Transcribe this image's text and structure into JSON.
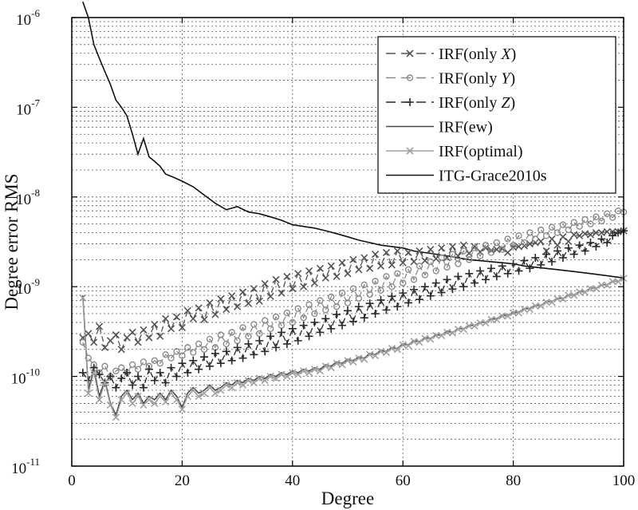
{
  "chart_data": {
    "type": "line",
    "title": "",
    "xlabel": "Degree",
    "ylabel": "Degree error RMS",
    "xlim": [
      0,
      100
    ],
    "ylim": [
      1e-11,
      1e-06
    ],
    "yscale": "log",
    "x_ticks": [
      0,
      20,
      40,
      60,
      80,
      100
    ],
    "x_tick_labels": [
      "0",
      "20",
      "40",
      "60",
      "80",
      "100"
    ],
    "y_ticks": [
      1e-11,
      1e-10,
      1e-09,
      1e-08,
      1e-07,
      1e-06
    ],
    "y_tick_labels": [
      {
        "base": "10",
        "exp": "-11"
      },
      {
        "base": "10",
        "exp": "-10"
      },
      {
        "base": "10",
        "exp": "-9"
      },
      {
        "base": "10",
        "exp": "-8"
      },
      {
        "base": "10",
        "exp": "-7"
      },
      {
        "base": "10",
        "exp": "-6"
      }
    ],
    "grid": true,
    "legend_position": "top-right",
    "series": [
      {
        "name": "IRF(only X)",
        "legend_prefix": "IRF(only ",
        "legend_var": "X",
        "legend_suffix": ")",
        "color": "#555555",
        "marker": "x",
        "dashed": true,
        "x_start": 2,
        "x_step": 1,
        "values": [
          2.7e-10,
          3e-10,
          2.4e-10,
          3.6e-10,
          2.1e-10,
          2.5e-10,
          2.9e-10,
          2e-10,
          2.7e-10,
          3.1e-10,
          2.4e-10,
          3.3e-10,
          2.7e-10,
          3.8e-10,
          2.8e-10,
          4.4e-10,
          3.4e-10,
          4.6e-10,
          3.5e-10,
          5.4e-10,
          4.4e-10,
          5.8e-10,
          4.3e-10,
          6.6e-10,
          4.9e-10,
          7.3e-10,
          5.6e-10,
          7.9e-10,
          6e-10,
          8.7e-10,
          6.5e-10,
          9.5e-10,
          6.9e-10,
          1.08e-09,
          7.8e-10,
          1.2e-09,
          8.5e-10,
          1.3e-09,
          9.5e-10,
          1.4e-09,
          1e-09,
          1.5e-09,
          1.1e-09,
          1.6e-09,
          1.25e-09,
          1.7e-09,
          1.3e-09,
          1.85e-09,
          1.4e-09,
          2e-09,
          1.55e-09,
          2.1e-09,
          1.6e-09,
          2.3e-09,
          1.7e-09,
          2.4e-09,
          1.75e-09,
          2.5e-09,
          1.85e-09,
          2.4e-09,
          1.9e-09,
          2.5e-09,
          1.95e-09,
          2.6e-09,
          2.05e-09,
          2.7e-09,
          2.1e-09,
          2.8e-09,
          2.2e-09,
          2.9e-09,
          2.35e-09,
          2.8e-09,
          2.45e-09,
          2.7e-09,
          2.55e-09,
          2.6e-09,
          2.65e-09,
          2.4e-09,
          2.75e-09,
          2.8e-09,
          2.85e-09,
          3e-09,
          3.1e-09,
          3.2e-09,
          2.5e-09,
          3.4e-09,
          2.9e-09,
          3.6e-09,
          3.2e-09,
          3.8e-09,
          3.7e-09,
          3.9e-09,
          3.8e-09,
          4e-09,
          4e-09,
          4.1e-09,
          4.1e-09,
          4.1e-09,
          4.2e-09
        ]
      },
      {
        "name": "IRF(only Y)",
        "legend_prefix": "IRF(only ",
        "legend_var": "Y",
        "legend_suffix": ")",
        "color": "#8a8a8a",
        "marker": "o",
        "dashed": true,
        "x_start": 2,
        "x_step": 1,
        "values": [
          2.4e-10,
          1.6e-10,
          1.35e-10,
          1.1e-10,
          1.3e-10,
          1e-10,
          1.15e-10,
          1.25e-10,
          1.1e-10,
          1.35e-10,
          1.2e-10,
          1.45e-10,
          1.3e-10,
          1.5e-10,
          1.4e-10,
          1.75e-10,
          1.6e-10,
          1.9e-10,
          1.7e-10,
          2.1e-10,
          1.85e-10,
          2.3e-10,
          2e-10,
          2.6e-10,
          2.1e-10,
          2.9e-10,
          2.3e-10,
          3.1e-10,
          2.5e-10,
          3.5e-10,
          2.8e-10,
          3.8e-10,
          3e-10,
          4.2e-10,
          3.4e-10,
          4.6e-10,
          3.7e-10,
          5.1e-10,
          4e-10,
          5.7e-10,
          4.5e-10,
          6.3e-10,
          5e-10,
          7e-10,
          5.5e-10,
          7.7e-10,
          6e-10,
          8.5e-10,
          6.6e-10,
          9.5e-10,
          7.4e-10,
          1.05e-09,
          8.2e-10,
          1.15e-09,
          9.1e-10,
          1.3e-09,
          1e-09,
          1.4e-09,
          1.1e-09,
          1.55e-09,
          1.2e-09,
          1.7e-09,
          1.35e-09,
          1.9e-09,
          1.5e-09,
          2.1e-09,
          1.65e-09,
          2.3e-09,
          1.8e-09,
          2.5e-09,
          2e-09,
          2.7e-09,
          2.2e-09,
          2.9e-09,
          2.4e-09,
          3.1e-09,
          2.6e-09,
          3.4e-09,
          2.9e-09,
          3.7e-09,
          3.1e-09,
          4e-09,
          3.4e-09,
          4.3e-09,
          3.7e-09,
          4.6e-09,
          4e-09,
          4.9e-09,
          4.3e-09,
          5.2e-09,
          4.7e-09,
          5.6e-09,
          5e-09,
          6e-09,
          5.4e-09,
          6.5e-09,
          5.9e-09,
          7e-09,
          6.8e-09
        ]
      },
      {
        "name": "IRF(only Z)",
        "legend_prefix": "IRF(only ",
        "legend_var": "Z",
        "legend_suffix": ")",
        "color": "#2a2a2a",
        "marker": "+",
        "dashed": true,
        "x_start": 2,
        "x_step": 1,
        "values": [
          1.1e-10,
          9e-11,
          1.25e-10,
          1.05e-10,
          8.5e-11,
          1e-10,
          7.5e-11,
          9.5e-11,
          1.1e-10,
          8e-11,
          1e-10,
          7.5e-11,
          1.2e-10,
          9e-11,
          1.1e-10,
          8.5e-11,
          1.25e-10,
          1e-10,
          1.4e-10,
          1.1e-10,
          1.5e-10,
          1.2e-10,
          1.65e-10,
          1.3e-10,
          1.8e-10,
          1.4e-10,
          1.9e-10,
          1.5e-10,
          2.1e-10,
          1.6e-10,
          2.3e-10,
          1.75e-10,
          2.5e-10,
          1.9e-10,
          2.8e-10,
          2.1e-10,
          3.1e-10,
          2.3e-10,
          3.4e-10,
          2.5e-10,
          3.7e-10,
          2.8e-10,
          4e-10,
          3.1e-10,
          4.4e-10,
          3.4e-10,
          4.9e-10,
          3.7e-10,
          5.4e-10,
          4.1e-10,
          6e-10,
          4.5e-10,
          6.5e-10,
          5e-10,
          7.1e-10,
          5.5e-10,
          7.8e-10,
          6e-10,
          8.5e-10,
          6.6e-10,
          9.3e-10,
          7.2e-10,
          1e-09,
          7.9e-10,
          1.1e-09,
          8.6e-10,
          1.2e-09,
          9.4e-10,
          1.3e-09,
          1e-09,
          1.4e-09,
          1.1e-09,
          1.5e-09,
          1.2e-09,
          1.6e-09,
          1.3e-09,
          1.7e-09,
          1.4e-09,
          1.8e-09,
          1.5e-09,
          1.95e-09,
          1.6e-09,
          2.1e-09,
          1.75e-09,
          2.3e-09,
          1.9e-09,
          2.5e-09,
          2.1e-09,
          2.7e-09,
          2.3e-09,
          2.9e-09,
          2.5e-09,
          3.1e-09,
          2.8e-09,
          3.4e-09,
          3.1e-09,
          3.7e-09,
          4e-09,
          4.2e-09
        ]
      },
      {
        "name": "IRF(ew)",
        "legend_prefix": "IRF(ew)",
        "legend_var": "",
        "legend_suffix": "",
        "color": "#4a4a4a",
        "marker": "none",
        "dashed": false,
        "x_start": 2,
        "x_step": 1,
        "values": [
          8e-10,
          7e-11,
          1.2e-10,
          6e-11,
          9e-11,
          5e-11,
          3.7e-11,
          6e-11,
          7e-11,
          5.5e-11,
          6.5e-11,
          5e-11,
          6e-11,
          5.5e-11,
          6.5e-11,
          5.5e-11,
          7e-11,
          6e-11,
          4.5e-11,
          6.5e-11,
          7.5e-11,
          6.5e-11,
          7e-11,
          8e-11,
          7e-11,
          7.5e-11,
          8.5e-11,
          8e-11,
          9e-11,
          8.5e-11,
          9.5e-11,
          9e-11,
          1e-10,
          9.5e-11,
          1.05e-10,
          1e-10,
          1.1e-10,
          1.05e-10,
          1.15e-10,
          1.1e-10,
          1.2e-10,
          1.15e-10,
          1.25e-10,
          1.2e-10,
          1.35e-10,
          1.3e-10,
          1.45e-10,
          1.4e-10,
          1.55e-10,
          1.5e-10,
          1.65e-10,
          1.6e-10,
          1.8e-10,
          1.75e-10,
          1.95e-10,
          1.9e-10,
          2.1e-10,
          2.05e-10,
          2.3e-10,
          2.25e-10,
          2.5e-10,
          2.45e-10,
          2.7e-10,
          2.65e-10,
          2.9e-10,
          2.9e-10,
          3.2e-10,
          3.1e-10,
          3.4e-10,
          3.4e-10,
          3.7e-10,
          3.7e-10,
          4e-10,
          4e-10,
          4.4e-10,
          4.4e-10,
          4.8e-10,
          4.8e-10,
          5.2e-10,
          5.2e-10,
          5.7e-10,
          5.7e-10,
          6.2e-10,
          6.2e-10,
          6.8e-10,
          6.8e-10,
          7.4e-10,
          7.4e-10,
          8.1e-10,
          8.1e-10,
          8.8e-10,
          8.8e-10,
          9.6e-10,
          9.6e-10,
          1.05e-09,
          1.05e-09,
          1.15e-09,
          1.15e-09,
          1.25e-09
        ]
      },
      {
        "name": "IRF(optimal)",
        "legend_prefix": "IRF(optimal)",
        "legend_var": "",
        "legend_suffix": "",
        "color": "#a0a0a0",
        "marker": "x",
        "dashed": false,
        "x_start": 2,
        "x_step": 1,
        "values": [
          7.5e-10,
          6.5e-11,
          1.1e-10,
          5.5e-11,
          8.5e-11,
          4.8e-11,
          3.5e-11,
          5.5e-11,
          6.5e-11,
          5e-11,
          6e-11,
          4.8e-11,
          5.5e-11,
          5e-11,
          6e-11,
          5.2e-11,
          6.5e-11,
          5.5e-11,
          4.3e-11,
          6e-11,
          7e-11,
          6e-11,
          6.5e-11,
          7.5e-11,
          6.5e-11,
          7e-11,
          8e-11,
          7.5e-11,
          8.5e-11,
          8e-11,
          9e-11,
          8.5e-11,
          9.5e-11,
          9e-11,
          1e-10,
          9.5e-11,
          1.05e-10,
          1e-10,
          1.1e-10,
          1.05e-10,
          1.15e-10,
          1.1e-10,
          1.2e-10,
          1.15e-10,
          1.3e-10,
          1.25e-10,
          1.4e-10,
          1.35e-10,
          1.5e-10,
          1.45e-10,
          1.6e-10,
          1.55e-10,
          1.75e-10,
          1.7e-10,
          1.9e-10,
          1.85e-10,
          2.05e-10,
          2e-10,
          2.25e-10,
          2.2e-10,
          2.45e-10,
          2.4e-10,
          2.65e-10,
          2.6e-10,
          2.85e-10,
          2.85e-10,
          3.1e-10,
          3.05e-10,
          3.35e-10,
          3.35e-10,
          3.65e-10,
          3.65e-10,
          3.95e-10,
          3.95e-10,
          4.3e-10,
          4.3e-10,
          4.7e-10,
          4.7e-10,
          5.1e-10,
          5.1e-10,
          5.6e-10,
          5.6e-10,
          6.1e-10,
          6.1e-10,
          6.7e-10,
          6.7e-10,
          7.3e-10,
          7.3e-10,
          8e-10,
          8e-10,
          8.7e-10,
          8.7e-10,
          9.5e-10,
          9.5e-10,
          1.04e-09,
          1.04e-09,
          1.14e-09,
          1.14e-09,
          1.24e-09
        ]
      },
      {
        "name": "ITG-Grace2010s",
        "legend_prefix": "ITG-Grace2010s",
        "legend_var": "",
        "legend_suffix": "",
        "color": "#111111",
        "marker": "none",
        "dashed": false,
        "x": [
          2,
          3,
          4,
          5,
          6,
          7,
          8,
          9,
          10,
          11,
          12,
          13,
          14,
          15,
          16,
          17,
          18,
          19,
          20,
          22,
          24,
          26,
          28,
          30,
          32,
          34,
          36,
          38,
          40,
          42,
          44,
          46,
          48,
          50,
          52,
          54,
          56,
          58,
          60,
          62,
          64,
          66,
          68,
          70,
          72,
          74,
          76,
          78,
          80,
          82,
          84,
          86,
          88,
          90,
          92,
          94,
          96,
          98,
          100
        ],
        "values": [
          1.5e-06,
          1e-06,
          5e-07,
          3.5e-07,
          2.5e-07,
          1.8e-07,
          1.2e-07,
          1e-07,
          8e-08,
          5e-08,
          3e-08,
          4.5e-08,
          2.8e-08,
          2.5e-08,
          2.2e-08,
          1.8e-08,
          1.7e-08,
          1.6e-08,
          1.5e-08,
          1.3e-08,
          1.05e-08,
          8.5e-09,
          7.2e-09,
          7.8e-09,
          6.8e-09,
          6.5e-09,
          6e-09,
          5.5e-09,
          4.9e-09,
          4.7e-09,
          4.5e-09,
          4.2e-09,
          3.9e-09,
          3.6e-09,
          3.3e-09,
          3.1e-09,
          2.9e-09,
          2.8e-09,
          2.7e-09,
          2.5e-09,
          2.4e-09,
          2.3e-09,
          2.2e-09,
          2.1e-09,
          2e-09,
          1.95e-09,
          1.9e-09,
          1.85e-09,
          1.8e-09,
          1.7e-09,
          1.65e-09,
          1.6e-09,
          1.55e-09,
          1.5e-09,
          1.45e-09,
          1.4e-09,
          1.35e-09,
          1.3e-09,
          1.25e-09
        ]
      }
    ]
  }
}
